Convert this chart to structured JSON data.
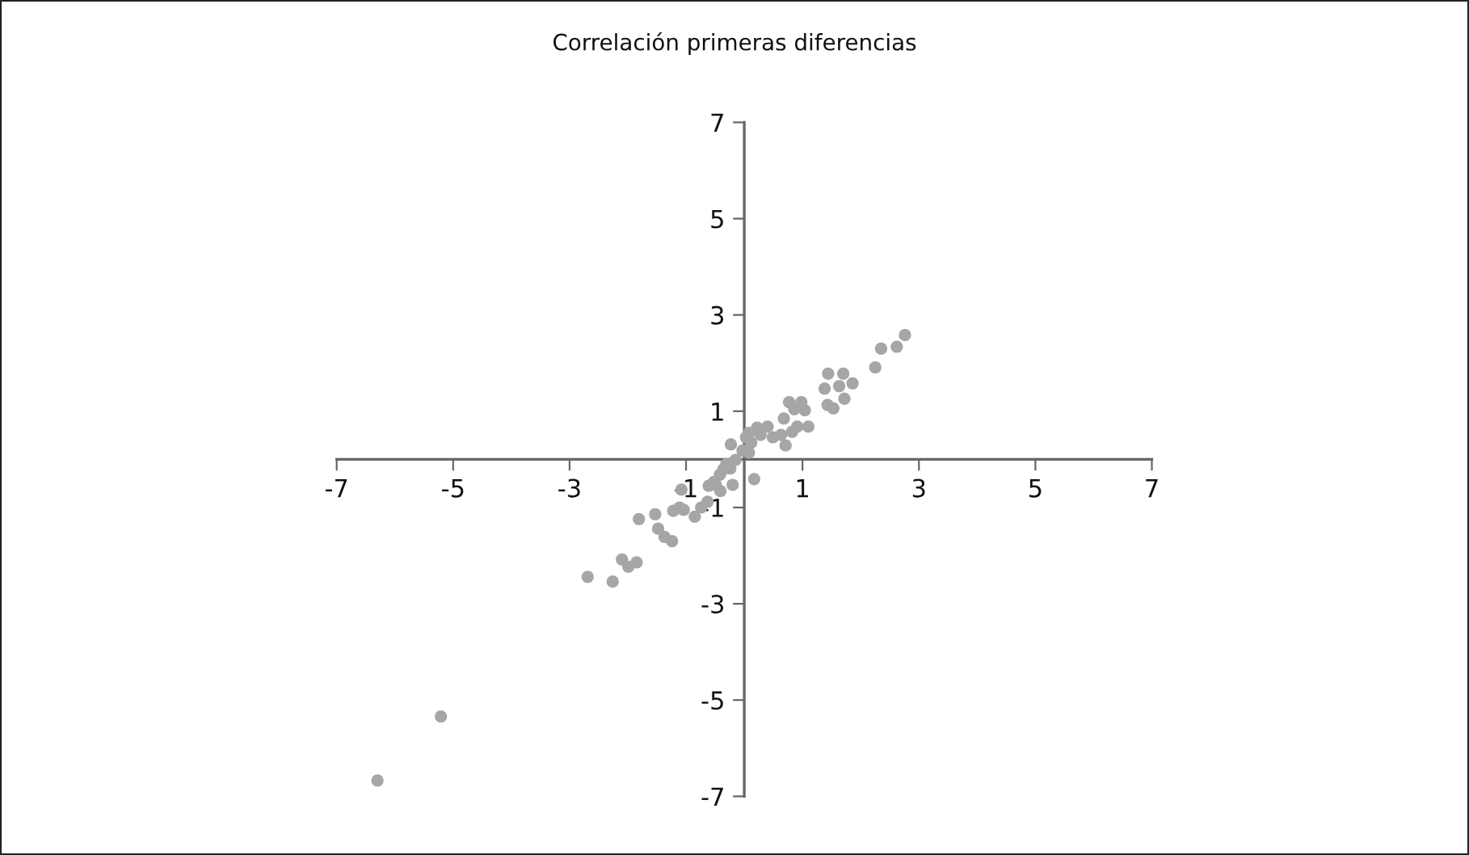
{
  "chart_data": {
    "type": "scatter",
    "title": "Correlación primeras diferencias",
    "series": [
      {
        "color": "#a6a6a6",
        "x": [
          -6.3,
          -5.21,
          -2.69,
          -2.26,
          -2.1,
          -1.99,
          -1.85,
          -1.81,
          -1.53,
          -1.48,
          -1.37,
          -1.24,
          -1.22,
          -1.11,
          -1.08,
          -1.04,
          -0.85,
          -0.74,
          -0.63,
          -0.61,
          -0.49,
          -0.42,
          -0.36,
          -0.41,
          -0.2,
          -0.31,
          -0.15,
          -0.23,
          -0.03,
          0.17,
          0.03,
          0.12,
          0.08,
          0.22,
          0.28,
          0.4,
          0.49,
          0.63,
          0.68,
          0.71,
          0.77,
          0.82,
          0.91,
          0.86,
          0.98,
          1.04,
          1.1,
          1.38,
          1.44,
          1.43,
          1.53,
          1.63,
          1.7,
          1.72,
          1.86,
          2.25,
          2.35,
          2.62,
          2.76,
          -0.52,
          -0.24,
          0.08
        ],
        "values": [
          -6.67,
          -5.34,
          -2.44,
          -2.54,
          -2.08,
          -2.23,
          -2.14,
          -1.24,
          -1.14,
          -1.44,
          -1.61,
          -1.7,
          -1.07,
          -1.0,
          -0.63,
          -1.05,
          -1.19,
          -1.0,
          -0.88,
          -0.55,
          -0.53,
          -0.32,
          -0.21,
          -0.66,
          -0.53,
          -0.1,
          -0.01,
          0.31,
          0.18,
          -0.41,
          0.46,
          0.35,
          0.55,
          0.66,
          0.51,
          0.68,
          0.46,
          0.51,
          0.85,
          0.29,
          1.19,
          0.57,
          0.68,
          1.04,
          1.19,
          1.02,
          0.68,
          1.47,
          1.78,
          1.13,
          1.06,
          1.52,
          1.78,
          1.26,
          1.58,
          1.91,
          2.3,
          2.34,
          2.58,
          -0.47,
          -0.19,
          0.14
        ]
      }
    ],
    "marker": "circle",
    "xlim": [
      -7,
      7
    ],
    "xticks": [
      -7,
      -5,
      -3,
      -1,
      1,
      3,
      5,
      7
    ],
    "ylim": [
      -7,
      7
    ],
    "yticks": [
      -7,
      -5,
      -3,
      -1,
      1,
      3,
      5,
      7
    ],
    "grid": false
  }
}
